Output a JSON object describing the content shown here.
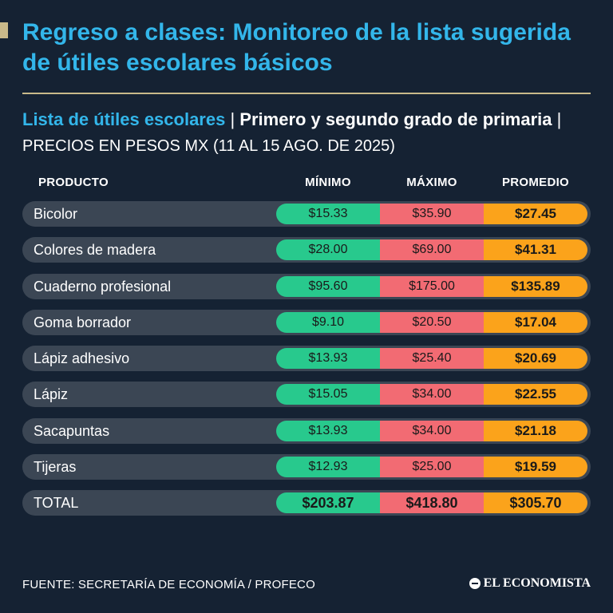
{
  "title": "Regreso a clases: Monitoreo de la lista sugerida de útiles escolares básicos",
  "subtitle": {
    "part_a": "Lista de útiles escolares",
    "separator": " | ",
    "part_b": "Primero y segundo grado de primaria",
    "separator2": " | ",
    "part_c": "PRECIOS EN PESOS MX (11 AL 15 AGO. DE 2025)"
  },
  "colors": {
    "background": "#152233",
    "title": "#33b6ea",
    "accent": "#c9b98a",
    "min": "#28c98d",
    "max": "#f26b73",
    "avg": "#fba31b"
  },
  "chart_data": {
    "type": "table",
    "title": "Regreso a clases: Monitoreo de la lista sugerida de útiles escolares básicos",
    "columns": [
      "PRODUCTO",
      "MÍNIMO",
      "MÁXIMO",
      "PROMEDIO"
    ],
    "rows": [
      {
        "product": "Bicolor",
        "min": "$15.33",
        "max": "$35.90",
        "avg": "$27.45"
      },
      {
        "product": "Colores de madera",
        "min": "$28.00",
        "max": "$69.00",
        "avg": "$41.31"
      },
      {
        "product": "Cuaderno profesional",
        "min": "$95.60",
        "max": "$175.00",
        "avg": "$135.89"
      },
      {
        "product": "Goma borrador",
        "min": "$9.10",
        "max": "$20.50",
        "avg": "$17.04"
      },
      {
        "product": "Lápiz adhesivo",
        "min": "$13.93",
        "max": "$25.40",
        "avg": "$20.69"
      },
      {
        "product": "Lápiz",
        "min": "$15.05",
        "max": "$34.00",
        "avg": "$22.55"
      },
      {
        "product": "Sacapuntas",
        "min": "$13.93",
        "max": "$34.00",
        "avg": "$21.18"
      },
      {
        "product": "Tijeras",
        "min": "$12.93",
        "max": "$25.00",
        "avg": "$19.59"
      }
    ],
    "total": {
      "product": "TOTAL",
      "min": "$203.87",
      "max": "$418.80",
      "avg": "$305.70"
    }
  },
  "footer": {
    "source": "FUENTE: SECRETARÍA DE ECONOMÍA / PROFECO",
    "logo": "EL ECONOMISTA",
    "logo_icon": "el-economista-mark-icon"
  }
}
